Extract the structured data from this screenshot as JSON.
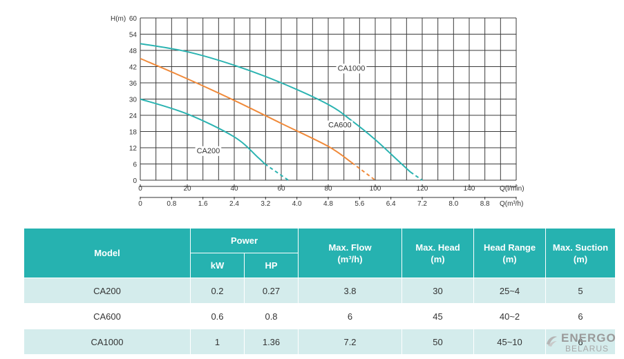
{
  "chart_data": {
    "type": "line",
    "ylabel": "H(m)",
    "xlabel": "Q(l/min)",
    "x2label": "Q(m³/h)",
    "ylim": [
      0,
      60
    ],
    "xlim": [
      0,
      160
    ],
    "y_ticks": [
      "0",
      "6",
      "12",
      "18",
      "24",
      "30",
      "36",
      "42",
      "48",
      "54",
      "60"
    ],
    "x_ticks": [
      "0",
      "20",
      "40",
      "60",
      "80",
      "100",
      "120",
      "140"
    ],
    "x2_ticks": [
      "0",
      "0.8",
      "1.6",
      "2.4",
      "3.2",
      "4.0",
      "4.8",
      "5.6",
      "6.4",
      "7.2",
      "8.0",
      "8.8"
    ],
    "grid": true,
    "series": [
      {
        "name": "CA1000",
        "color": "#2bb3b1",
        "x": [
          0,
          20,
          40,
          60,
          80,
          90,
          100,
          110,
          115
        ],
        "y": [
          50.5,
          47.5,
          42.5,
          36,
          28,
          22,
          15,
          7,
          3
        ],
        "dashed_x": [
          115,
          120
        ],
        "dashed_y": [
          3,
          0
        ]
      },
      {
        "name": "CA600",
        "color": "#f08a3a",
        "x": [
          0,
          20,
          40,
          60,
          80,
          90
        ],
        "y": [
          45,
          37.5,
          29.5,
          21,
          12.5,
          6.5
        ],
        "dashed_x": [
          90,
          100
        ],
        "dashed_y": [
          6.5,
          0
        ]
      },
      {
        "name": "CA200",
        "color": "#2bb3b1",
        "x": [
          0,
          20,
          40,
          50,
          53
        ],
        "y": [
          30,
          24.5,
          16,
          8.5,
          6
        ],
        "dashed_x": [
          53,
          63
        ],
        "dashed_y": [
          6,
          0
        ]
      }
    ],
    "annotations": [
      {
        "text": "CA1000",
        "x": 84,
        "y": 40.5
      },
      {
        "text": "CA600",
        "x": 80,
        "y": 19.5
      },
      {
        "text": "CA200",
        "x": 24,
        "y": 10
      }
    ]
  },
  "table": {
    "headers": {
      "model": "Model",
      "power": "Power",
      "kw": "kW",
      "hp": "HP",
      "max_flow_1": "Max. Flow",
      "max_flow_2": "(m³/h)",
      "max_head_1": "Max. Head",
      "max_head_2": "(m)",
      "head_range_1": "Head Range",
      "head_range_2": "(m)",
      "max_suction_1": "Max. Suction",
      "max_suction_2": "(m)"
    },
    "rows": [
      {
        "model": "CA200",
        "kw": "0.2",
        "hp": "0.27",
        "flow": "3.8",
        "head": "30",
        "range": "25~4",
        "suction": "5"
      },
      {
        "model": "CA600",
        "kw": "0.6",
        "hp": "0.8",
        "flow": "6",
        "head": "45",
        "range": "40~2",
        "suction": "6"
      },
      {
        "model": "CA1000",
        "kw": "1",
        "hp": "1.36",
        "flow": "7.2",
        "head": "50",
        "range": "45~10",
        "suction": "6"
      }
    ]
  },
  "watermark": {
    "line1": "ENERGO",
    "line2": "BELARUS"
  }
}
